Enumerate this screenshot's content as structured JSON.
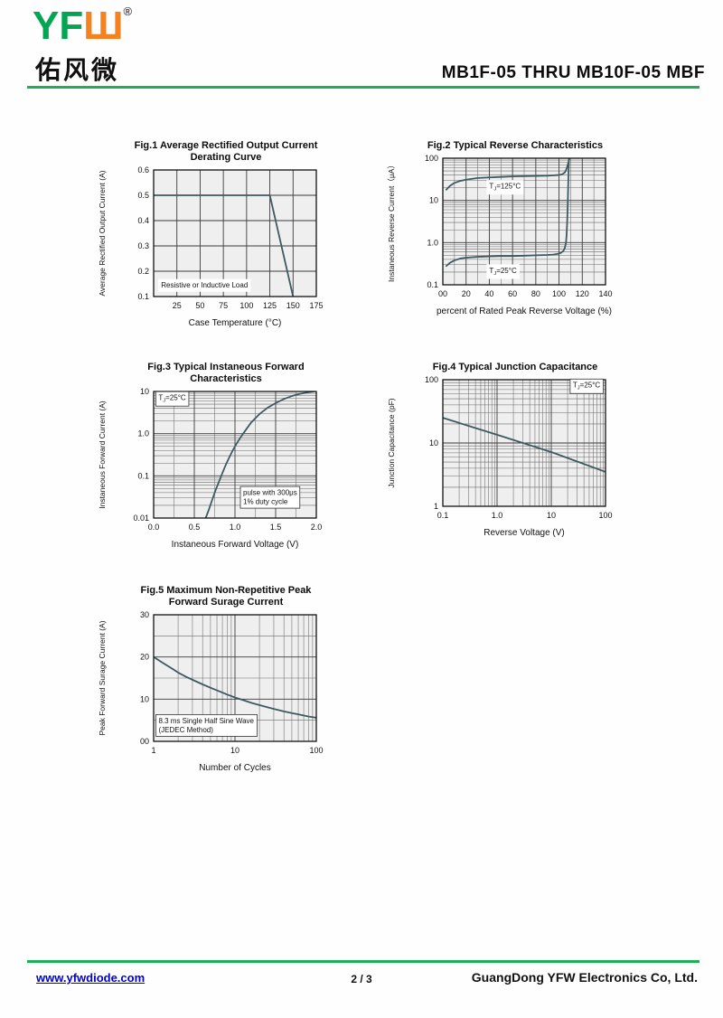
{
  "header": {
    "logo_latin": "YF",
    "logo_latin2": "Ш",
    "logo_reg": "®",
    "logo_cn": "佑风微",
    "title": "MB1F-05 THRU MB10F-05  MBF"
  },
  "footer": {
    "website": "www.yfwdiode.com",
    "page": "2 / 3",
    "company": "GuangDong YFW Electronics Co, Ltd."
  },
  "colors": {
    "green": "#1fae54",
    "orange": "#f58220",
    "logo_green": "#00a651",
    "link_blue": "#0000cc",
    "curve": "#3d5a60",
    "grid": "#6a6a6a",
    "plot_bg": "#efefef",
    "border": "#111111"
  },
  "chart_data": [
    {
      "type": "line",
      "title": [
        "Fig.1  Average Rectified Output Current",
        "Derating Curve"
      ],
      "xlabel": "Case Temperature (°C)",
      "ylabel": "Average Rectified Output Current (A)",
      "x": {
        "scale": "linear",
        "min": 0,
        "max": 175,
        "ticks": [
          25,
          50,
          75,
          100,
          125,
          150,
          175
        ],
        "tick_labels": [
          "25",
          "50",
          "75",
          "100",
          "125",
          "150",
          "175"
        ],
        "minor_step": null
      },
      "y": {
        "scale": "linear",
        "min": 0.1,
        "max": 0.6,
        "ticks": [
          0.1,
          0.2,
          0.3,
          0.4,
          0.5,
          0.6
        ],
        "tick_labels": [
          "0.1",
          "0.2",
          "0.3",
          "0.4",
          "0.5",
          "0.6"
        ],
        "minor_step": null
      },
      "series": [
        {
          "name": "derating-curve",
          "points": [
            [
              0,
              0.5
            ],
            [
              125,
              0.5
            ],
            [
              150,
              0.1
            ]
          ]
        }
      ],
      "annotations": [
        {
          "text": "Resistive or Inductive Load",
          "x": 8,
          "y": 0.135,
          "anchor": "start",
          "box": "plain"
        }
      ]
    },
    {
      "type": "line",
      "title": [
        "Fig.2  Typical Reverse Characteristics",
        ""
      ],
      "xlabel": "percent of Rated  Peak Reverse Voltage (%)",
      "ylabel": "Instaneous Reverse Current（μA）",
      "x": {
        "scale": "linear",
        "min": 0,
        "max": 140,
        "ticks": [
          0,
          20,
          40,
          60,
          80,
          100,
          120,
          140
        ],
        "tick_labels": [
          "00",
          "20",
          "40",
          "60",
          "80",
          "100",
          "120",
          "140"
        ],
        "minor_step": 10
      },
      "y": {
        "scale": "log",
        "min": 0.1,
        "max": 100,
        "ticks": [
          0.1,
          1,
          10,
          100
        ],
        "tick_labels": [
          "0.1",
          "1.0",
          "10",
          "100"
        ],
        "minor_step": null
      },
      "series": [
        {
          "name": "tj-125c",
          "points": [
            [
              3,
              18
            ],
            [
              6,
              22
            ],
            [
              10,
              26
            ],
            [
              15,
              29
            ],
            [
              20,
              31
            ],
            [
              30,
              34
            ],
            [
              40,
              35
            ],
            [
              50,
              36
            ],
            [
              60,
              37
            ],
            [
              70,
              37.5
            ],
            [
              80,
              38
            ],
            [
              90,
              38.5
            ],
            [
              100,
              40
            ],
            [
              103,
              42
            ],
            [
              105,
              46
            ],
            [
              106,
              52
            ],
            [
              107,
              62
            ],
            [
              108,
              78
            ],
            [
              109,
              100
            ]
          ]
        },
        {
          "name": "tj-25c",
          "points": [
            [
              3,
              0.28
            ],
            [
              6,
              0.33
            ],
            [
              10,
              0.38
            ],
            [
              15,
              0.42
            ],
            [
              20,
              0.44
            ],
            [
              30,
              0.46
            ],
            [
              40,
              0.47
            ],
            [
              50,
              0.48
            ],
            [
              60,
              0.48
            ],
            [
              70,
              0.49
            ],
            [
              80,
              0.5
            ],
            [
              90,
              0.51
            ],
            [
              95,
              0.52
            ],
            [
              100,
              0.55
            ],
            [
              102,
              0.58
            ],
            [
              104,
              0.65
            ],
            [
              105,
              0.75
            ],
            [
              106,
              1.0
            ],
            [
              106.5,
              1.5
            ],
            [
              107,
              3
            ],
            [
              107.5,
              8
            ],
            [
              108,
              30
            ],
            [
              108.5,
              100
            ]
          ]
        }
      ],
      "annotations": [
        {
          "text": "T_J=125°C",
          "x": 40,
          "y": 19,
          "anchor": "start",
          "box": "plain"
        },
        {
          "text": "T_J=25°C",
          "x": 40,
          "y": 0.19,
          "anchor": "start",
          "box": "plain"
        }
      ]
    },
    {
      "type": "line",
      "title": [
        "Fig.3  Typical Instaneous Forward",
        "Characteristics"
      ],
      "xlabel": "Instaneous Forward Voltage (V)",
      "ylabel": "Instaneous Forward Current (A)",
      "x": {
        "scale": "linear",
        "min": 0,
        "max": 2,
        "ticks": [
          0,
          0.5,
          1,
          1.5,
          2
        ],
        "tick_labels": [
          "0.0",
          "0.5",
          "1.0",
          "1.5",
          "2.0"
        ],
        "minor_step": 0.25
      },
      "y": {
        "scale": "log",
        "min": 0.01,
        "max": 10,
        "ticks": [
          0.01,
          0.1,
          1,
          10
        ],
        "tick_labels": [
          "0.01",
          "0.1",
          "1.0",
          "10"
        ],
        "minor_step": null
      },
      "series": [
        {
          "name": "forward-characteristic",
          "points": [
            [
              0.64,
              0.01
            ],
            [
              0.68,
              0.016
            ],
            [
              0.72,
              0.027
            ],
            [
              0.76,
              0.045
            ],
            [
              0.8,
              0.07
            ],
            [
              0.84,
              0.11
            ],
            [
              0.88,
              0.17
            ],
            [
              0.92,
              0.25
            ],
            [
              0.96,
              0.36
            ],
            [
              1.0,
              0.5
            ],
            [
              1.05,
              0.72
            ],
            [
              1.1,
              1.0
            ],
            [
              1.2,
              1.85
            ],
            [
              1.3,
              2.9
            ],
            [
              1.4,
              4.1
            ],
            [
              1.5,
              5.3
            ],
            [
              1.6,
              6.6
            ],
            [
              1.7,
              7.8
            ],
            [
              1.8,
              8.8
            ],
            [
              1.9,
              9.6
            ],
            [
              1.97,
              10
            ]
          ]
        }
      ],
      "annotations": [
        {
          "text": "T_J=25°C",
          "x": 0.06,
          "y": 6.2,
          "anchor": "start",
          "box": "border"
        },
        {
          "text": "pulse with 300μs\n1% duty cycle",
          "x": 1.1,
          "y": 0.035,
          "anchor": "start",
          "box": "border"
        }
      ]
    },
    {
      "type": "line",
      "title": [
        "Fig.4  Typical Junction Capacitance",
        ""
      ],
      "xlabel": "Reverse  Voltage (V)",
      "ylabel": "Junction Capacitance (pF)",
      "x": {
        "scale": "log",
        "min": 0.1,
        "max": 100,
        "ticks": [
          0.1,
          1,
          10,
          100
        ],
        "tick_labels": [
          "0.1",
          "1.0",
          "10",
          "100"
        ],
        "minor_step": null
      },
      "y": {
        "scale": "log",
        "min": 1,
        "max": 100,
        "ticks": [
          1,
          10,
          100
        ],
        "tick_labels": [
          "1",
          "10",
          "100"
        ],
        "minor_step": null
      },
      "series": [
        {
          "name": "junction-capacitance",
          "points": [
            [
              0.1,
              25
            ],
            [
              1,
              13.5
            ],
            [
              10,
              7.2
            ],
            [
              100,
              3.5
            ]
          ]
        }
      ],
      "annotations": [
        {
          "text": "T_J=25°C",
          "x": 80,
          "y": 75,
          "anchor": "end",
          "box": "border"
        }
      ]
    },
    {
      "type": "line",
      "title": [
        "Fig.5  Maximum Non-Repetitive Peak",
        "Forward Surage Current"
      ],
      "xlabel": "Number of Cycles",
      "ylabel": "Peak Forward Surage Current (A)",
      "x": {
        "scale": "log",
        "min": 1,
        "max": 100,
        "ticks": [
          1,
          10,
          100
        ],
        "tick_labels": [
          "1",
          "10",
          "100"
        ],
        "minor_step": null
      },
      "y": {
        "scale": "linear",
        "min": 0,
        "max": 30,
        "ticks": [
          0,
          10,
          20,
          30
        ],
        "tick_labels": [
          "00",
          "10",
          "20",
          "30"
        ],
        "minor_step": 5
      },
      "series": [
        {
          "name": "surge-current",
          "points": [
            [
              1,
              20
            ],
            [
              1.3,
              18.6
            ],
            [
              1.7,
              17.2
            ],
            [
              2,
              16.3
            ],
            [
              2.5,
              15.3
            ],
            [
              3,
              14.6
            ],
            [
              4,
              13.5
            ],
            [
              5,
              12.7
            ],
            [
              6,
              12.1
            ],
            [
              8,
              11.1
            ],
            [
              10,
              10.4
            ],
            [
              13,
              9.7
            ],
            [
              16,
              9.1
            ],
            [
              20,
              8.6
            ],
            [
              25,
              8.1
            ],
            [
              30,
              7.7
            ],
            [
              40,
              7.1
            ],
            [
              50,
              6.7
            ],
            [
              60,
              6.4
            ],
            [
              80,
              5.9
            ],
            [
              100,
              5.6
            ]
          ]
        }
      ],
      "annotations": [
        {
          "text": "8.3 ms Single Half Sine Wave\n(JEDEC Method)",
          "x": 1.15,
          "y": 4.3,
          "anchor": "start",
          "box": "border"
        }
      ]
    }
  ]
}
